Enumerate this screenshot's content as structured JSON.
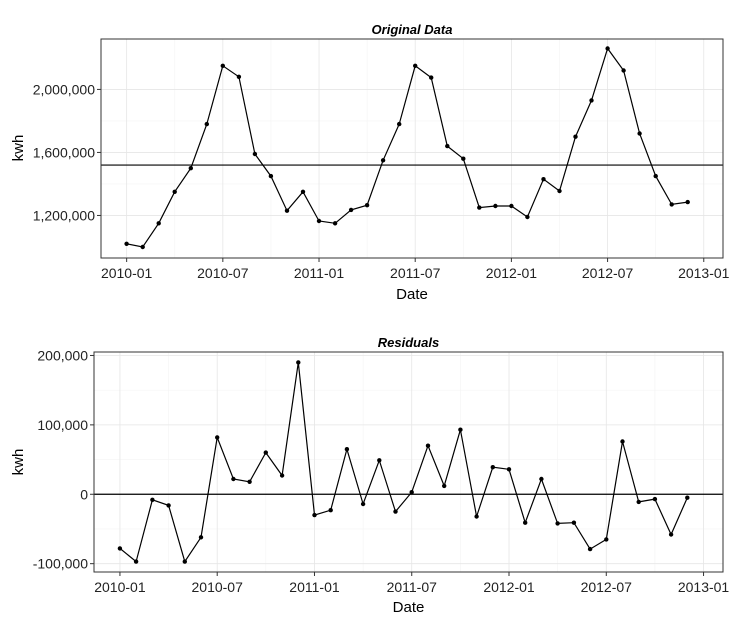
{
  "chart_data": [
    {
      "type": "line",
      "title": "Original Data",
      "xlabel": "Date",
      "ylabel": "kwh",
      "x_ticks": [
        "2010-01",
        "2010-07",
        "2011-01",
        "2011-07",
        "2012-01",
        "2012-07",
        "2013-01"
      ],
      "y_ticks": [
        "1,200,000",
        "1,600,000",
        "2,000,000"
      ],
      "y_tick_values": [
        1200000,
        1600000,
        2000000
      ],
      "ylim": [
        930000,
        2320000
      ],
      "reference_line": 1520000,
      "grid": true,
      "x": [
        "2010-01",
        "2010-02",
        "2010-03",
        "2010-04",
        "2010-05",
        "2010-06",
        "2010-07",
        "2010-08",
        "2010-09",
        "2010-10",
        "2010-11",
        "2010-12",
        "2011-01",
        "2011-02",
        "2011-03",
        "2011-04",
        "2011-05",
        "2011-06",
        "2011-07",
        "2011-08",
        "2011-09",
        "2011-10",
        "2011-11",
        "2011-12",
        "2012-01",
        "2012-02",
        "2012-03",
        "2012-04",
        "2012-05",
        "2012-06",
        "2012-07",
        "2012-08",
        "2012-09",
        "2012-10",
        "2012-11",
        "2012-12"
      ],
      "series": [
        {
          "values": [
            1020000,
            1000000,
            1150000,
            1350000,
            1500000,
            1780000,
            2150000,
            2080000,
            1590000,
            1450000,
            1230000,
            1350000,
            1165000,
            1150000,
            1235000,
            1265000,
            1550000,
            1780000,
            2150000,
            2075000,
            1640000,
            1560000,
            1250000,
            1260000,
            1260000,
            1190000,
            1430000,
            1355000,
            1700000,
            1930000,
            2260000,
            2120000,
            1720000,
            1450000,
            1270000,
            1285000
          ]
        }
      ]
    },
    {
      "type": "line",
      "title": "Residuals",
      "xlabel": "Date",
      "ylabel": "kwh",
      "x_ticks": [
        "2010-01",
        "2010-07",
        "2011-01",
        "2011-07",
        "2012-01",
        "2012-07",
        "2013-01"
      ],
      "y_ticks": [
        "-100,000",
        "0",
        "100,000",
        "200,000"
      ],
      "y_tick_values": [
        -100000,
        0,
        100000,
        200000
      ],
      "ylim": [
        -112000,
        205000
      ],
      "reference_line": 0,
      "grid": true,
      "x": [
        "2010-01",
        "2010-02",
        "2010-03",
        "2010-04",
        "2010-05",
        "2010-06",
        "2010-07",
        "2010-08",
        "2010-09",
        "2010-10",
        "2010-11",
        "2010-12",
        "2011-01",
        "2011-02",
        "2011-03",
        "2011-04",
        "2011-05",
        "2011-06",
        "2011-07",
        "2011-08",
        "2011-09",
        "2011-10",
        "2011-11",
        "2011-12",
        "2012-01",
        "2012-02",
        "2012-03",
        "2012-04",
        "2012-05",
        "2012-06",
        "2012-07",
        "2012-08",
        "2012-09",
        "2012-10",
        "2012-11",
        "2012-12"
      ],
      "series": [
        {
          "values": [
            -78000,
            -97000,
            -8000,
            -16000,
            -97000,
            -62000,
            82000,
            22000,
            18000,
            60000,
            27000,
            190000,
            -30000,
            -23000,
            65000,
            -14000,
            49000,
            -25000,
            3000,
            70000,
            12000,
            93000,
            -32000,
            39000,
            36000,
            -41000,
            22000,
            -42000,
            -41000,
            -79000,
            -65000,
            76000,
            -11000,
            -7000,
            -58000,
            -5000
          ]
        }
      ]
    }
  ]
}
